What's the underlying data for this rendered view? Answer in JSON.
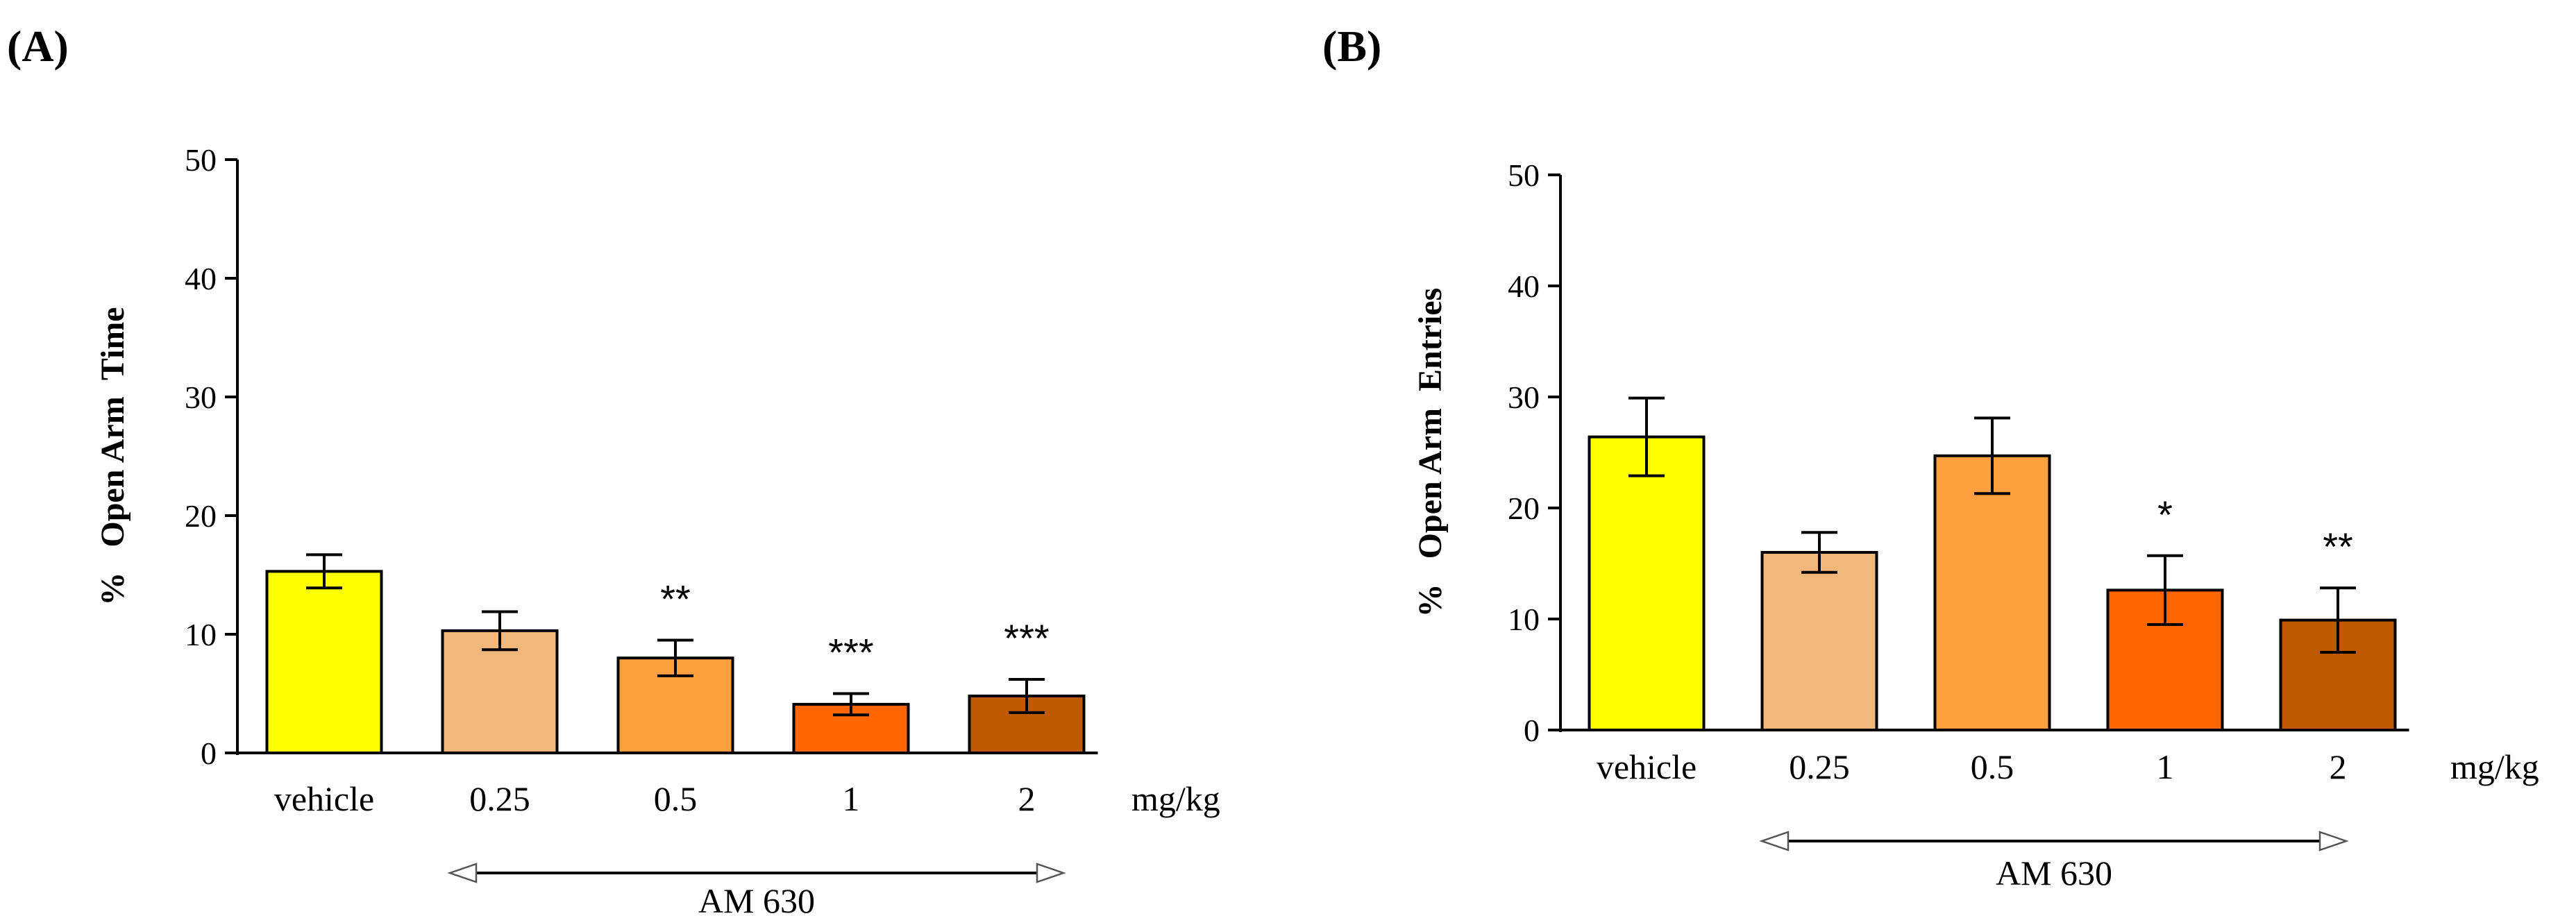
{
  "chart_data": [
    {
      "type": "bar",
      "panel_label": "(A)",
      "ylabel": "%   Open Arm  Time",
      "ylim": [
        0,
        50
      ],
      "yticks": [
        0,
        10,
        20,
        30,
        40,
        50
      ],
      "categories": [
        "vehicle",
        "0.25",
        "0.5",
        "1",
        "2"
      ],
      "values": [
        15.3,
        10.3,
        8.0,
        4.1,
        4.8
      ],
      "errors": [
        1.4,
        1.6,
        1.5,
        0.9,
        1.4
      ],
      "significance": [
        "",
        "",
        "**",
        "***",
        "***"
      ],
      "colors": [
        "#ffff00",
        "#f2b77b",
        "#ffa040",
        "#ff6600",
        "#c05a00"
      ],
      "unit_label": "mg/kg",
      "group_label": "AM 630"
    },
    {
      "type": "bar",
      "panel_label": "(B)",
      "ylabel": "%   Open Arm  Entries",
      "ylim": [
        0,
        50
      ],
      "yticks": [
        0,
        10,
        20,
        30,
        40,
        50
      ],
      "categories": [
        "vehicle",
        "0.25",
        "0.5",
        "1",
        "2"
      ],
      "values": [
        26.4,
        16.0,
        24.7,
        12.6,
        9.9
      ],
      "errors": [
        3.5,
        1.8,
        3.4,
        3.1,
        2.9
      ],
      "significance": [
        "",
        "",
        "",
        "*",
        "**"
      ],
      "colors": [
        "#ffff00",
        "#f2b77b",
        "#ffa040",
        "#ff6600",
        "#c05a00"
      ],
      "unit_label": "mg/kg",
      "group_label": "AM 630"
    }
  ]
}
